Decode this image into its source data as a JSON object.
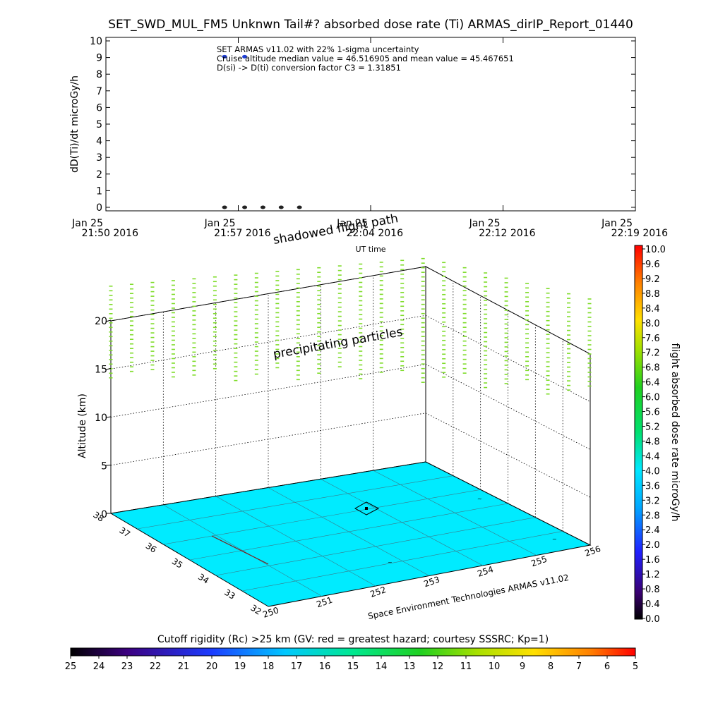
{
  "chart_data": [
    {
      "type": "scatter",
      "title": "SET_SWD_MUL_FM5 Unknwn Tail#? absorbed dose rate (Ti) ARMAS_dirIP_Report_01440",
      "ylabel": "dD(Ti)/dt microGy/h",
      "xlabel": "UT time",
      "ylim": [
        0,
        10
      ],
      "y_ticks": [
        "0",
        "1",
        "2",
        "3",
        "4",
        "5",
        "6",
        "7",
        "8",
        "9",
        "10"
      ],
      "x_ticks": [
        {
          "date": "Jan 25",
          "time": "21:50 2016"
        },
        {
          "date": "Jan 25",
          "time": "21:57 2016"
        },
        {
          "date": "Jan 25",
          "time": "22:04 2016"
        },
        {
          "date": "Jan 25",
          "time": "22:12 2016"
        },
        {
          "date": "Jan 25",
          "time": "22:19 2016"
        }
      ],
      "annotations": [
        "SET ARMAS v11.02 with 22% 1-sigma uncertainty",
        "Cruise altitude median value = 46.516905 and mean value = 45.467651",
        "D(si) -> D(ti) conversion factor C3 = 1.31851"
      ],
      "series": [
        {
          "color": "#1f3fd6",
          "x_minutes": [
            6.5,
            7.6
          ],
          "y": [
            9.05,
            9.05
          ]
        },
        {
          "color": "#222222",
          "x_minutes": [
            6.5,
            7.6,
            8.6,
            9.6,
            10.6
          ],
          "y": [
            0.0,
            0.0,
            0.0,
            0.0,
            0.0
          ]
        }
      ],
      "x_range_minutes": [
        0,
        29
      ]
    },
    {
      "type": "scatter",
      "subtype": "3d-flight-path",
      "zlabel": "Altitude (km)",
      "z_ticks": [
        "0",
        "5",
        "10",
        "15",
        "20"
      ],
      "lat_ticks": [
        "38",
        "37",
        "36",
        "35",
        "34",
        "33",
        "32"
      ],
      "lon_ticks": [
        "250",
        "251",
        "252",
        "253",
        "254",
        "255",
        "256"
      ],
      "overlays": {
        "shadowed": "shadowed flight path",
        "precipitating": "precipitating particles"
      },
      "credit": "Space Environment Technologies ARMAS v11.02",
      "colorbar": {
        "label": "flight absorbed dose rate microGy/h",
        "ticks": [
          "10.0",
          "9.6",
          "9.2",
          "8.8",
          "8.4",
          "8.0",
          "7.6",
          "7.2",
          "6.8",
          "6.4",
          "6.0",
          "5.6",
          "5.2",
          "4.8",
          "4.4",
          "4.0",
          "3.6",
          "3.2",
          "2.8",
          "2.4",
          "2.0",
          "1.6",
          "1.2",
          "0.8",
          "0.4",
          "0.0"
        ]
      },
      "surface_color": "#00ebff",
      "marker_color": "#7fdc2a"
    },
    {
      "type": "heatmap",
      "subtype": "colorbar",
      "title": "Cutoff rigidity (Rc) >25 km (GV: red = greatest hazard; courtesy SSSRC; Kp=1)",
      "ticks": [
        "25",
        "24",
        "23",
        "22",
        "21",
        "20",
        "19",
        "18",
        "17",
        "16",
        "15",
        "14",
        "13",
        "12",
        "11",
        "10",
        "9",
        "8",
        "7",
        "6",
        "5"
      ]
    }
  ]
}
